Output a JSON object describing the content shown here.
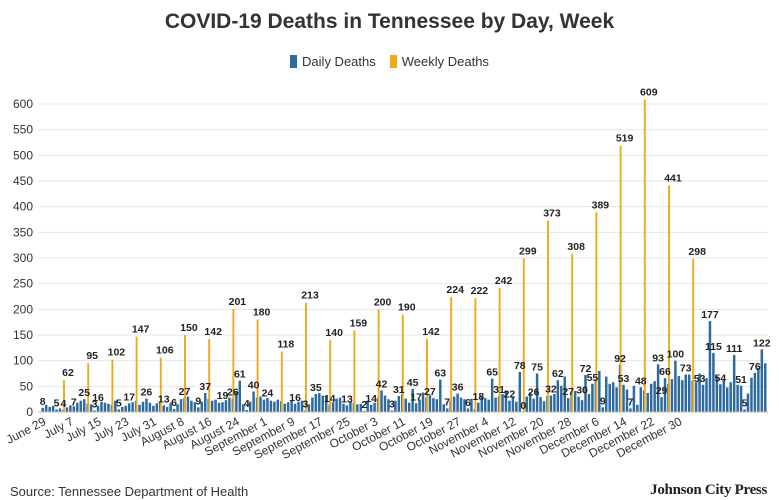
{
  "chart_data": {
    "type": "bar",
    "title": "COVID-19 Deaths in Tennessee by Day, Week",
    "xlabel": "",
    "ylabel": "",
    "ylim": [
      0,
      620
    ],
    "yticks": [
      0,
      50,
      100,
      150,
      200,
      250,
      300,
      350,
      400,
      450,
      500,
      550,
      600
    ],
    "legend": {
      "position": "top-center",
      "entries": [
        "Daily Deaths",
        "Weekly Deaths"
      ]
    },
    "x_tick_labels": [
      "June 29",
      "July 7",
      "July 15",
      "July 23",
      "July 31",
      "August 8",
      "August 16",
      "August 24",
      "September 1",
      "September 9",
      "September 17",
      "September 25",
      "October 3",
      "October 11",
      "October 19",
      "October 27",
      "November 4",
      "November 12",
      "November 20",
      "November 28",
      "December 6",
      "December 14",
      "December 22",
      "December 30"
    ],
    "series": [
      {
        "name": "Daily Deaths",
        "color": "#2d6a9f",
        "start_date": "June 29",
        "values": [
          8,
          14,
          10,
          12,
          5,
          7,
          4,
          9,
          13,
          11,
          18,
          22,
          25,
          16,
          15,
          3,
          12,
          20,
          18,
          16,
          14,
          22,
          5,
          10,
          12,
          17,
          19,
          22,
          14,
          20,
          26,
          18,
          12,
          17,
          20,
          13,
          10,
          18,
          6,
          15,
          25,
          27,
          30,
          22,
          19,
          9,
          20,
          37,
          26,
          22,
          24,
          18,
          19,
          23,
          28,
          26,
          40,
          61,
          15,
          4,
          20,
          40,
          28,
          30,
          24,
          27,
          22,
          20,
          24,
          21,
          16,
          19,
          23,
          16,
          20,
          22,
          3,
          15,
          28,
          35,
          37,
          32,
          30,
          14,
          19,
          26,
          28,
          16,
          13,
          20,
          18,
          15,
          16,
          2,
          22,
          14,
          18,
          28,
          42,
          32,
          25,
          3,
          22,
          31,
          35,
          26,
          18,
          45,
          17,
          24,
          38,
          28,
          33,
          27,
          25,
          63,
          15,
          7,
          22,
          30,
          36,
          28,
          25,
          7,
          26,
          6,
          18,
          30,
          27,
          24,
          65,
          28,
          31,
          35,
          42,
          22,
          30,
          20,
          78,
          0,
          30,
          38,
          26,
          75,
          29,
          21,
          31,
          32,
          35,
          62,
          51,
          69,
          27,
          36,
          41,
          30,
          23,
          72,
          35,
          55,
          63,
          80,
          9,
          69,
          55,
          58,
          48,
          92,
          53,
          44,
          7,
          51,
          14,
          48,
          42,
          37,
          55,
          60,
          93,
          29,
          66,
          55,
          64,
          100,
          70,
          62,
          73,
          73,
          61,
          58,
          75,
          53,
          66,
          177,
          115,
          70,
          54,
          62,
          48,
          58,
          111,
          53,
          51,
          5,
          36,
          67,
          76,
          86,
          122,
          95
        ]
      },
      {
        "name": "Weekly Deaths",
        "color": "#f0a81c",
        "start_date": "June 29",
        "values": [
          62,
          95,
          102,
          147,
          106,
          150,
          142,
          201,
          180,
          118,
          213,
          140,
          159,
          200,
          190,
          142,
          224,
          222,
          242,
          299,
          373,
          308,
          389,
          519,
          609,
          441,
          298
        ]
      }
    ],
    "annotations": [
      "8",
      "5",
      "4",
      "7",
      "25",
      "3",
      "16",
      "5",
      "17",
      "26",
      "13",
      "6",
      "27",
      "9",
      "37",
      "19",
      "26",
      "61",
      "4",
      "40",
      "24",
      "16",
      "3",
      "35",
      "14",
      "13",
      "2",
      "14",
      "42",
      "3",
      "31",
      "17",
      "45",
      "27",
      "63",
      "7",
      "36",
      "6",
      "18",
      "65",
      "31",
      "22",
      "78",
      "0",
      "26",
      "75",
      "32",
      "62",
      "27",
      "72",
      "30",
      "55",
      "9",
      "92",
      "53",
      "7",
      "48",
      "93",
      "29",
      "66",
      "100",
      "73",
      "53",
      "177",
      "115",
      "54",
      "111",
      "51",
      "5",
      "76",
      "122",
      "62",
      "95",
      "102",
      "147",
      "106",
      "150",
      "142",
      "201",
      "180",
      "118",
      "213",
      "140",
      "159",
      "200",
      "190",
      "142",
      "224",
      "222",
      "242",
      "299",
      "373",
      "308",
      "389",
      "519",
      "609",
      "441",
      "298"
    ]
  },
  "source_note": "Source: Tennessee Department of Health",
  "publisher_logo": "Johnson City Press"
}
